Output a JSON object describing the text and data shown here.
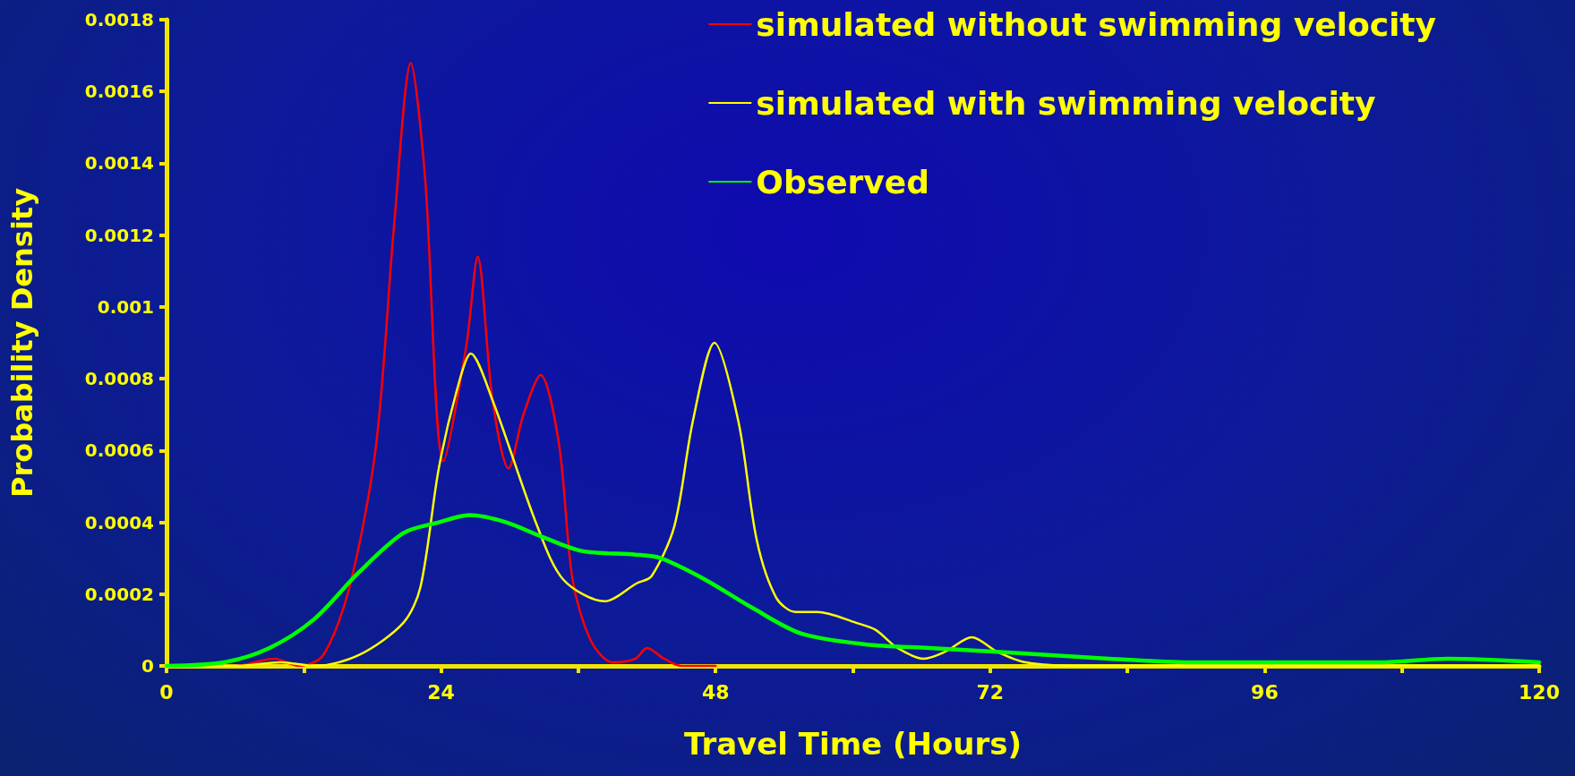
{
  "chart_data": {
    "type": "line",
    "xlabel": "Travel Time (Hours)",
    "ylabel": "Probability Density",
    "xlim": [
      0,
      120
    ],
    "xticks": [
      0,
      {
        "value": 12,
        "label": null
      },
      24,
      {
        "value": 36,
        "label": null
      },
      48,
      {
        "value": 60,
        "label": null
      },
      72,
      {
        "value": 84,
        "label": null
      },
      96,
      {
        "value": 108,
        "label": null
      },
      120
    ],
    "ylim": [
      0,
      0.0018
    ],
    "yticks": [
      0,
      0.0002,
      0.0004,
      0.0006,
      0.0008,
      0.001,
      0.0012,
      0.0014,
      0.0016,
      0.0018
    ],
    "grid": false,
    "legend": "top right",
    "marker": "none",
    "line_style": "solid",
    "series": [
      {
        "name": "simulated without swimming velocity",
        "color": "#ff0000",
        "x": [
          0,
          6,
          9.4,
          11.6,
          13.7,
          16,
          18.3,
          19.9,
          21.35,
          22.6,
          24.2,
          26.2,
          27.2,
          28.5,
          29.9,
          31.2,
          32.7,
          34.3,
          35.5,
          37.1,
          39,
          41,
          42,
          43.5,
          45,
          48
        ],
        "values": [
          0,
          0,
          2e-05,
          0,
          3e-05,
          0.00022,
          0.00061,
          0.00123,
          0.00168,
          0.00136,
          0.00057,
          0.00089,
          0.00114,
          0.00074,
          0.00055,
          0.0007,
          0.00081,
          0.00062,
          0.00024,
          7e-05,
          1e-05,
          2e-05,
          5e-05,
          2e-05,
          0,
          0
        ]
      },
      {
        "name": "simulated with swimming velocity",
        "color": "#ffff00",
        "x": [
          0,
          6,
          10,
          13,
          16.8,
          20.7,
          22.2,
          23.8,
          25.4,
          26.6,
          28.5,
          32.4,
          34.7,
          38.3,
          41.1,
          42.4,
          44.4,
          46,
          47.9,
          50,
          51.6,
          53.3,
          55,
          56.9,
          60.3,
          62,
          63.9,
          66.2,
          68.1,
          70.4,
          72.6,
          75.1,
          80,
          100,
          120
        ],
        "values": [
          0,
          0,
          1e-05,
          0,
          3e-05,
          0.00012,
          0.00022,
          0.00055,
          0.00077,
          0.00087,
          0.00074,
          0.00039,
          0.00024,
          0.00018,
          0.00023,
          0.00025,
          0.00039,
          0.00068,
          0.0009,
          0.00068,
          0.00035,
          0.00019,
          0.00015,
          0.00015,
          0.00012,
          0.0001,
          5e-05,
          2e-05,
          4e-05,
          8e-05,
          4e-05,
          1e-05,
          0,
          0,
          0
        ]
      },
      {
        "name": "Observed",
        "color": "#00ff00",
        "x": [
          0,
          5,
          9,
          12.9,
          16.8,
          20.7,
          23.8,
          26.5,
          29.7,
          32.8,
          36.3,
          41,
          43.2,
          47.1,
          51.3,
          55.5,
          61.1,
          66.7,
          72.3,
          82.4,
          90,
          96,
          106,
          112,
          120
        ],
        "values": [
          0,
          1e-05,
          5e-05,
          0.00013,
          0.00026,
          0.00037,
          0.0004,
          0.00042,
          0.0004,
          0.00036,
          0.00032,
          0.00031,
          0.0003,
          0.00024,
          0.00016,
          9e-05,
          6e-05,
          5e-05,
          4e-05,
          2e-05,
          1e-05,
          1e-05,
          1e-05,
          2e-05,
          1e-05
        ]
      }
    ]
  }
}
